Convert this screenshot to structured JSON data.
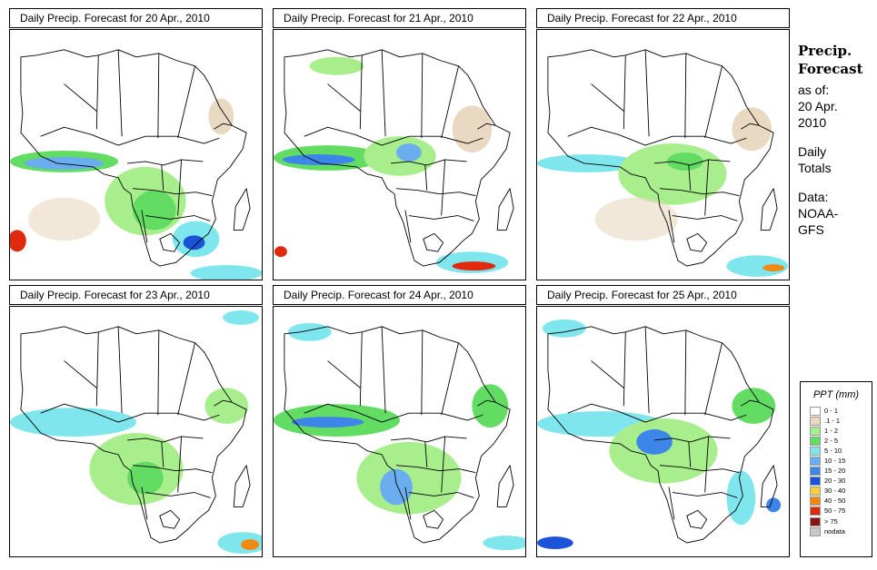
{
  "panels": [
    {
      "title": "Daily Precip. Forecast for  20 Apr., 2010"
    },
    {
      "title": "Daily Precip. Forecast for  21 Apr., 2010"
    },
    {
      "title": "Daily Precip. Forecast for  22 Apr., 2010"
    },
    {
      "title": "Daily Precip. Forecast for  23 Apr., 2010"
    },
    {
      "title": "Daily Precip. Forecast for  24 Apr., 2010"
    },
    {
      "title": "Daily Precip. Forecast for  25 Apr., 2010"
    }
  ],
  "side": {
    "title_line1": "Precip.",
    "title_line2": "Forecast",
    "asof_label": "as of:",
    "asof_date1": "20 Apr.",
    "asof_date2": "2010",
    "totals1": "Daily",
    "totals2": "Totals",
    "data_label": "Data:",
    "source1": "NOAA-",
    "source2": "GFS"
  },
  "legend": {
    "title": "PPT (mm)",
    "classes": [
      {
        "label": "0 - 1",
        "color": "#ffffff"
      },
      {
        "label": ".1 - 1",
        "color": "#ead9c2"
      },
      {
        "label": "1 - 2",
        "color": "#a8ee8c"
      },
      {
        "label": "2 - 5",
        "color": "#62dc62"
      },
      {
        "label": "5 - 10",
        "color": "#7fe6ee"
      },
      {
        "label": "10 - 15",
        "color": "#6aaef0"
      },
      {
        "label": "15 - 20",
        "color": "#3c86ea"
      },
      {
        "label": "20 - 30",
        "color": "#1a52d8"
      },
      {
        "label": "30 - 40",
        "color": "#f4d040"
      },
      {
        "label": "40 - 50",
        "color": "#f08a12"
      },
      {
        "label": "50 - 75",
        "color": "#e02a0e"
      },
      {
        "label": "> 75",
        "color": "#8a1414"
      },
      {
        "label": "nodata",
        "color": "#c8c8c8"
      }
    ]
  }
}
